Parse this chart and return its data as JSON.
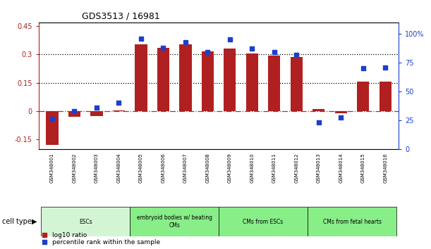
{
  "title": "GDS3513 / 16981",
  "samples": [
    "GSM348001",
    "GSM348002",
    "GSM348003",
    "GSM348004",
    "GSM348005",
    "GSM348006",
    "GSM348007",
    "GSM348008",
    "GSM348009",
    "GSM348010",
    "GSM348011",
    "GSM348012",
    "GSM348013",
    "GSM348014",
    "GSM348015",
    "GSM348016"
  ],
  "log10_ratio": [
    -0.18,
    -0.03,
    -0.025,
    0.005,
    0.355,
    0.335,
    0.355,
    0.315,
    0.33,
    0.305,
    0.295,
    0.285,
    0.01,
    -0.01,
    0.155,
    0.155
  ],
  "percentile_rank": [
    26,
    33,
    36,
    40,
    96,
    88,
    93,
    84,
    95,
    87,
    84,
    82,
    23,
    27,
    70,
    71
  ],
  "ylim_left": [
    -0.2,
    0.47
  ],
  "ylim_right": [
    0,
    110.0
  ],
  "yticks_left": [
    -0.15,
    0.0,
    0.15,
    0.3,
    0.45
  ],
  "yticks_right": [
    0,
    25,
    50,
    75,
    100
  ],
  "ytick_labels_left": [
    "-0.15",
    "0",
    "0.15",
    "0.3",
    "0.45"
  ],
  "ytick_labels_right": [
    "0",
    "25",
    "50",
    "75",
    "100%"
  ],
  "hlines": [
    0.15,
    0.3
  ],
  "bar_color": "#b02020",
  "dot_color": "#1c3fcc",
  "zero_line_color": "#cc2222",
  "grid_line_color": "#000000",
  "cell_types": [
    {
      "label": "ESCs",
      "start": 0,
      "end": 4,
      "color": "#d4f5d4"
    },
    {
      "label": "embryoid bodies w/ beating\nCMs",
      "start": 4,
      "end": 8,
      "color": "#88ee88"
    },
    {
      "label": "CMs from ESCs",
      "start": 8,
      "end": 12,
      "color": "#88ee88"
    },
    {
      "label": "CMs from fetal hearts",
      "start": 12,
      "end": 16,
      "color": "#88ee88"
    }
  ],
  "legend_bar_label": "log10 ratio",
  "legend_dot_label": "percentile rank within the sample",
  "xlabel_cell_type": "cell type"
}
